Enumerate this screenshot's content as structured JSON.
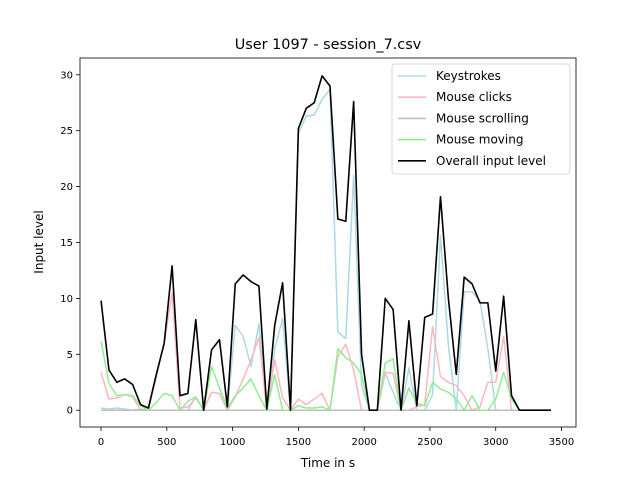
{
  "chart_data": {
    "type": "line",
    "title": "User 1097 - session_7.csv",
    "xlabel": "Time in s",
    "ylabel": "Input level",
    "xlim": [
      -160,
      3610
    ],
    "ylim": [
      -1.5,
      31.5
    ],
    "xticks": [
      0,
      500,
      1000,
      1500,
      2000,
      2500,
      3000,
      3500
    ],
    "yticks": [
      0,
      5,
      10,
      15,
      20,
      25,
      30
    ],
    "grid": false,
    "legend_position": "top-right",
    "x": [
      0,
      60,
      120,
      180,
      240,
      300,
      360,
      420,
      480,
      540,
      600,
      660,
      720,
      780,
      840,
      900,
      960,
      1020,
      1080,
      1140,
      1200,
      1260,
      1320,
      1380,
      1440,
      1500,
      1560,
      1620,
      1680,
      1740,
      1800,
      1860,
      1920,
      1980,
      2040,
      2100,
      2160,
      2220,
      2280,
      2340,
      2400,
      2460,
      2520,
      2580,
      2640,
      2700,
      2760,
      2820,
      2880,
      2940,
      3000,
      3060,
      3120,
      3180,
      3240,
      3300,
      3360,
      3420
    ],
    "series": [
      {
        "name": "Keystrokes",
        "color": "#add8e6",
        "values": [
          0.2,
          0.1,
          0.2,
          0.1,
          0.0,
          0.1,
          0.0,
          0.0,
          0.0,
          0.0,
          0.0,
          0.0,
          1.2,
          0.0,
          0.0,
          0.0,
          0.0,
          7.6,
          6.6,
          3.9,
          7.7,
          0.0,
          5.5,
          8.2,
          0.0,
          24.8,
          26.3,
          26.4,
          27.8,
          28.7,
          7.0,
          6.4,
          21.0,
          2.2,
          0.0,
          0.0,
          3.3,
          1.6,
          0.0,
          3.8,
          0.0,
          0.0,
          1.4,
          15.6,
          5.8,
          0.0,
          10.6,
          10.6,
          9.8,
          5.5,
          0.0,
          0.0,
          0.0,
          0.0,
          0.0,
          0.0,
          0.0,
          0.0
        ]
      },
      {
        "name": "Mouse clicks",
        "color": "#ffb6c1",
        "values": [
          3.4,
          1.0,
          1.1,
          1.4,
          1.2,
          0.0,
          0.0,
          3.0,
          6.0,
          10.5,
          0.2,
          0.3,
          1.1,
          0.0,
          1.6,
          1.5,
          0.0,
          1.2,
          2.8,
          4.5,
          6.5,
          0.0,
          4.5,
          1.1,
          0.0,
          1.0,
          0.5,
          1.0,
          1.5,
          0.0,
          4.8,
          5.9,
          3.6,
          0.0,
          0.0,
          0.0,
          3.4,
          3.3,
          0.0,
          0.0,
          0.3,
          0.5,
          7.5,
          3.0,
          2.5,
          2.2,
          1.3,
          0.0,
          0.3,
          2.5,
          2.5,
          6.6,
          0.0,
          0.0,
          0.0,
          0.0,
          0.0,
          0.0
        ]
      },
      {
        "name": "Mouse scrolling",
        "color": "#bebebe",
        "values": [
          0.0,
          0.0,
          0.0,
          0.0,
          0.0,
          0.0,
          0.0,
          0.0,
          0.0,
          0.0,
          0.0,
          0.0,
          0.0,
          0.0,
          0.0,
          0.0,
          0.0,
          0.0,
          0.0,
          0.0,
          0.0,
          0.0,
          0.0,
          0.0,
          0.0,
          0.0,
          0.0,
          0.0,
          0.0,
          0.0,
          0.0,
          0.0,
          0.0,
          0.0,
          0.0,
          0.0,
          0.0,
          0.0,
          0.0,
          0.0,
          0.0,
          0.0,
          0.0,
          0.0,
          0.0,
          0.0,
          0.0,
          0.0,
          0.0,
          0.0,
          0.0,
          0.0,
          0.0,
          0.0,
          0.0,
          0.0,
          0.0,
          0.0
        ]
      },
      {
        "name": "Mouse moving",
        "color": "#90ee90",
        "values": [
          6.2,
          2.4,
          1.3,
          1.4,
          1.3,
          0.4,
          0.0,
          0.7,
          1.5,
          1.3,
          0.0,
          0.8,
          1.2,
          0.0,
          3.9,
          2.0,
          0.2,
          1.3,
          2.0,
          2.8,
          1.3,
          0.0,
          3.2,
          0.0,
          0.0,
          0.4,
          0.2,
          0.2,
          0.3,
          0.0,
          5.5,
          4.7,
          4.2,
          3.2,
          0.0,
          0.0,
          4.2,
          4.6,
          0.0,
          2.0,
          0.6,
          0.4,
          2.5,
          1.9,
          1.6,
          1.0,
          0.0,
          1.3,
          0.0,
          0.0,
          1.0,
          3.4,
          1.0,
          0.0,
          0.0,
          0.0,
          0.0,
          0.0
        ]
      },
      {
        "name": "Overall input level",
        "color": "#000000",
        "values": [
          9.8,
          3.6,
          2.5,
          2.8,
          2.3,
          0.5,
          0.2,
          3.2,
          6.0,
          12.9,
          1.3,
          1.5,
          8.1,
          0.0,
          5.4,
          6.3,
          0.3,
          11.3,
          12.1,
          11.5,
          11.1,
          0.1,
          7.6,
          11.4,
          0.0,
          25.2,
          27.0,
          27.5,
          29.9,
          29.0,
          17.1,
          16.9,
          27.6,
          5.0,
          0.0,
          0.0,
          10.0,
          9.0,
          0.0,
          8.0,
          0.4,
          8.3,
          8.6,
          19.1,
          10.0,
          3.2,
          11.9,
          11.3,
          9.6,
          9.6,
          3.5,
          10.2,
          1.3,
          0.0,
          0.0,
          0.0,
          0.0,
          0.0
        ]
      }
    ]
  }
}
